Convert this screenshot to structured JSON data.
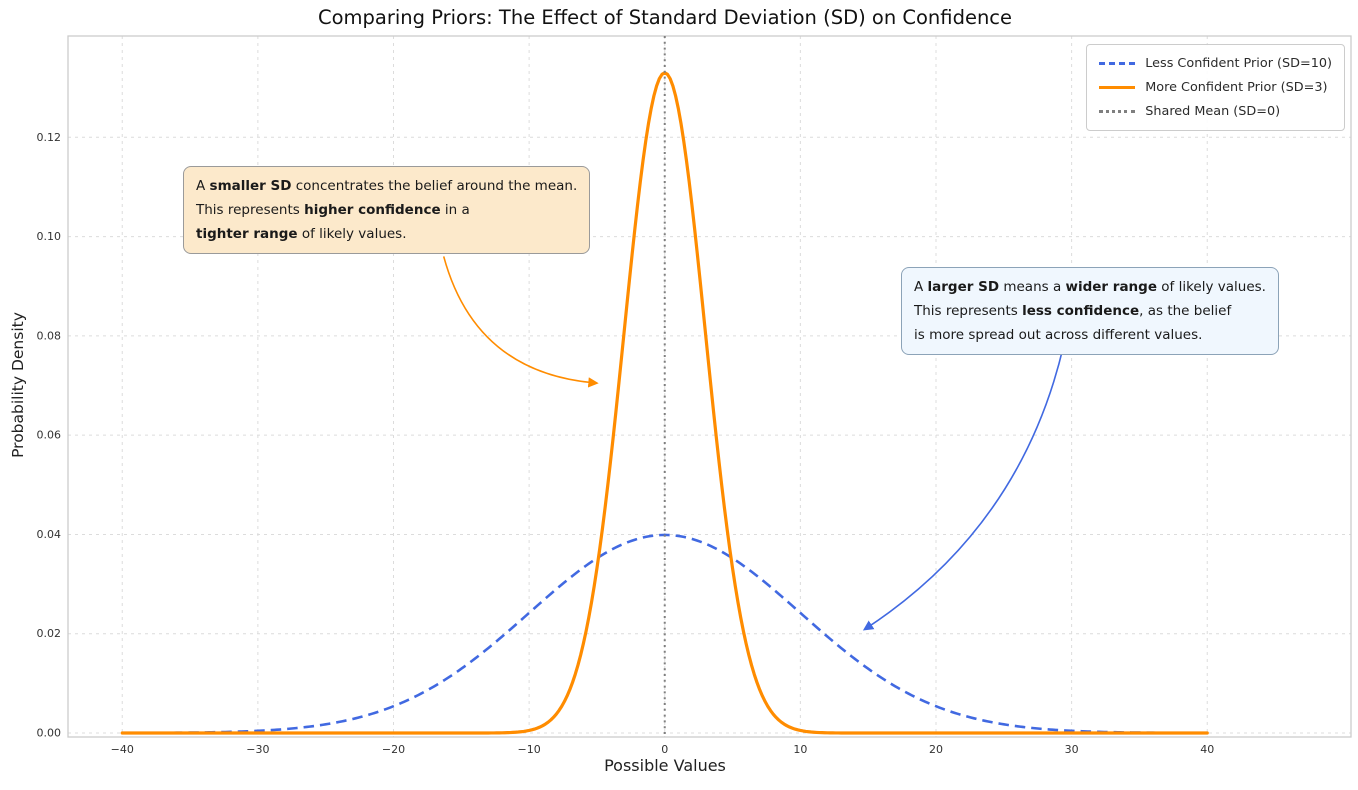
{
  "chart_data": {
    "type": "line",
    "title": "Comparing Priors: The Effect of Standard Deviation (SD) on Confidence",
    "xlabel": "Possible Values",
    "ylabel": "Probability Density",
    "xlim": [
      -44,
      50.6
    ],
    "ylim": [
      -0.0008,
      0.1404
    ],
    "curve_x_range": [
      -40,
      40
    ],
    "x_tick_values": [
      -40,
      -30,
      -20,
      -10,
      0,
      10,
      20,
      30,
      40
    ],
    "x_tick_labels": [
      "−40",
      "−30",
      "−20",
      "−10",
      "0",
      "10",
      "20",
      "30",
      "40"
    ],
    "y_tick_values": [
      0.0,
      0.02,
      0.04,
      0.06,
      0.08,
      0.1,
      0.12
    ],
    "y_tick_labels": [
      "0.00",
      "0.02",
      "0.04",
      "0.06",
      "0.08",
      "0.10",
      "0.12"
    ],
    "grid": true,
    "grid_color": "#dcdcdc",
    "legend_position": "upper right",
    "series": [
      {
        "name": "Less Confident Prior (SD=10)",
        "distribution": "normal",
        "mean": 0,
        "sd": 10,
        "peak_density": 0.0399,
        "color": "#4169E1",
        "style": "dashed",
        "dash": "10.5 6",
        "width": 2.6,
        "sample_x": [
          -40,
          -35,
          -30,
          -25,
          -20,
          -15,
          -10,
          -5,
          0,
          5,
          10,
          15,
          20,
          25,
          30,
          35,
          40
        ],
        "sample_y": [
          1e-05,
          9e-05,
          0.00044,
          0.00175,
          0.0054,
          0.01295,
          0.0242,
          0.03521,
          0.03989,
          0.03521,
          0.0242,
          0.01295,
          0.0054,
          0.00175,
          0.00044,
          9e-05,
          1e-05
        ]
      },
      {
        "name": "More Confident Prior (SD=3)",
        "distribution": "normal",
        "mean": 0,
        "sd": 3,
        "peak_density": 0.133,
        "color": "#FF8C00",
        "style": "solid",
        "dash": "",
        "width": 3.2,
        "sample_x": [
          -40,
          -35,
          -30,
          -25,
          -20,
          -15,
          -10,
          -5,
          0,
          5,
          10,
          15,
          20,
          25,
          30,
          35,
          40
        ],
        "sample_y": [
          0,
          0,
          0,
          0,
          0,
          1e-06,
          0.00052,
          0.03316,
          0.13298,
          0.03316,
          0.00052,
          1e-06,
          0,
          0,
          0,
          0,
          0
        ]
      }
    ],
    "vline": {
      "name": "Shared Mean (SD=0)",
      "x": 0,
      "color": "#7f7f7f",
      "style": "dotted"
    },
    "annotations": [
      {
        "id": "smaller-sd",
        "box_fill": "#FCE9CB",
        "box_border": "#9a9a9a",
        "lines": [
          [
            {
              "t": "A "
            },
            {
              "t": "smaller SD",
              "b": true
            },
            {
              "t": " concentrates the belief around the mean."
            }
          ],
          [
            {
              "t": "This represents "
            },
            {
              "t": "higher confidence",
              "b": true
            },
            {
              "t": " in a"
            }
          ],
          [
            {
              "t": "tighter range",
              "b": true
            },
            {
              "t": " of likely values."
            }
          ]
        ],
        "arrow": {
          "color": "#FF8C00",
          "from": [
            -16.3,
            0.096
          ],
          "to": [
            -5.1,
            0.0705
          ],
          "curve": 0.35
        }
      },
      {
        "id": "larger-sd",
        "box_fill": "#F0F7FE",
        "box_border": "#8CA3B8",
        "lines": [
          [
            {
              "t": "A "
            },
            {
              "t": "larger SD",
              "b": true
            },
            {
              "t": " means a "
            },
            {
              "t": "wider range",
              "b": true
            },
            {
              "t": " of likely values."
            }
          ],
          [
            {
              "t": "This represents "
            },
            {
              "t": "less confidence",
              "b": true
            },
            {
              "t": ", as the belief"
            }
          ],
          [
            {
              "t": "is more spread out across different values."
            }
          ]
        ],
        "arrow": {
          "color": "#4169E1",
          "from": [
            29.4,
            0.078
          ],
          "to": [
            14.8,
            0.021
          ],
          "curve": -0.2
        }
      }
    ]
  }
}
